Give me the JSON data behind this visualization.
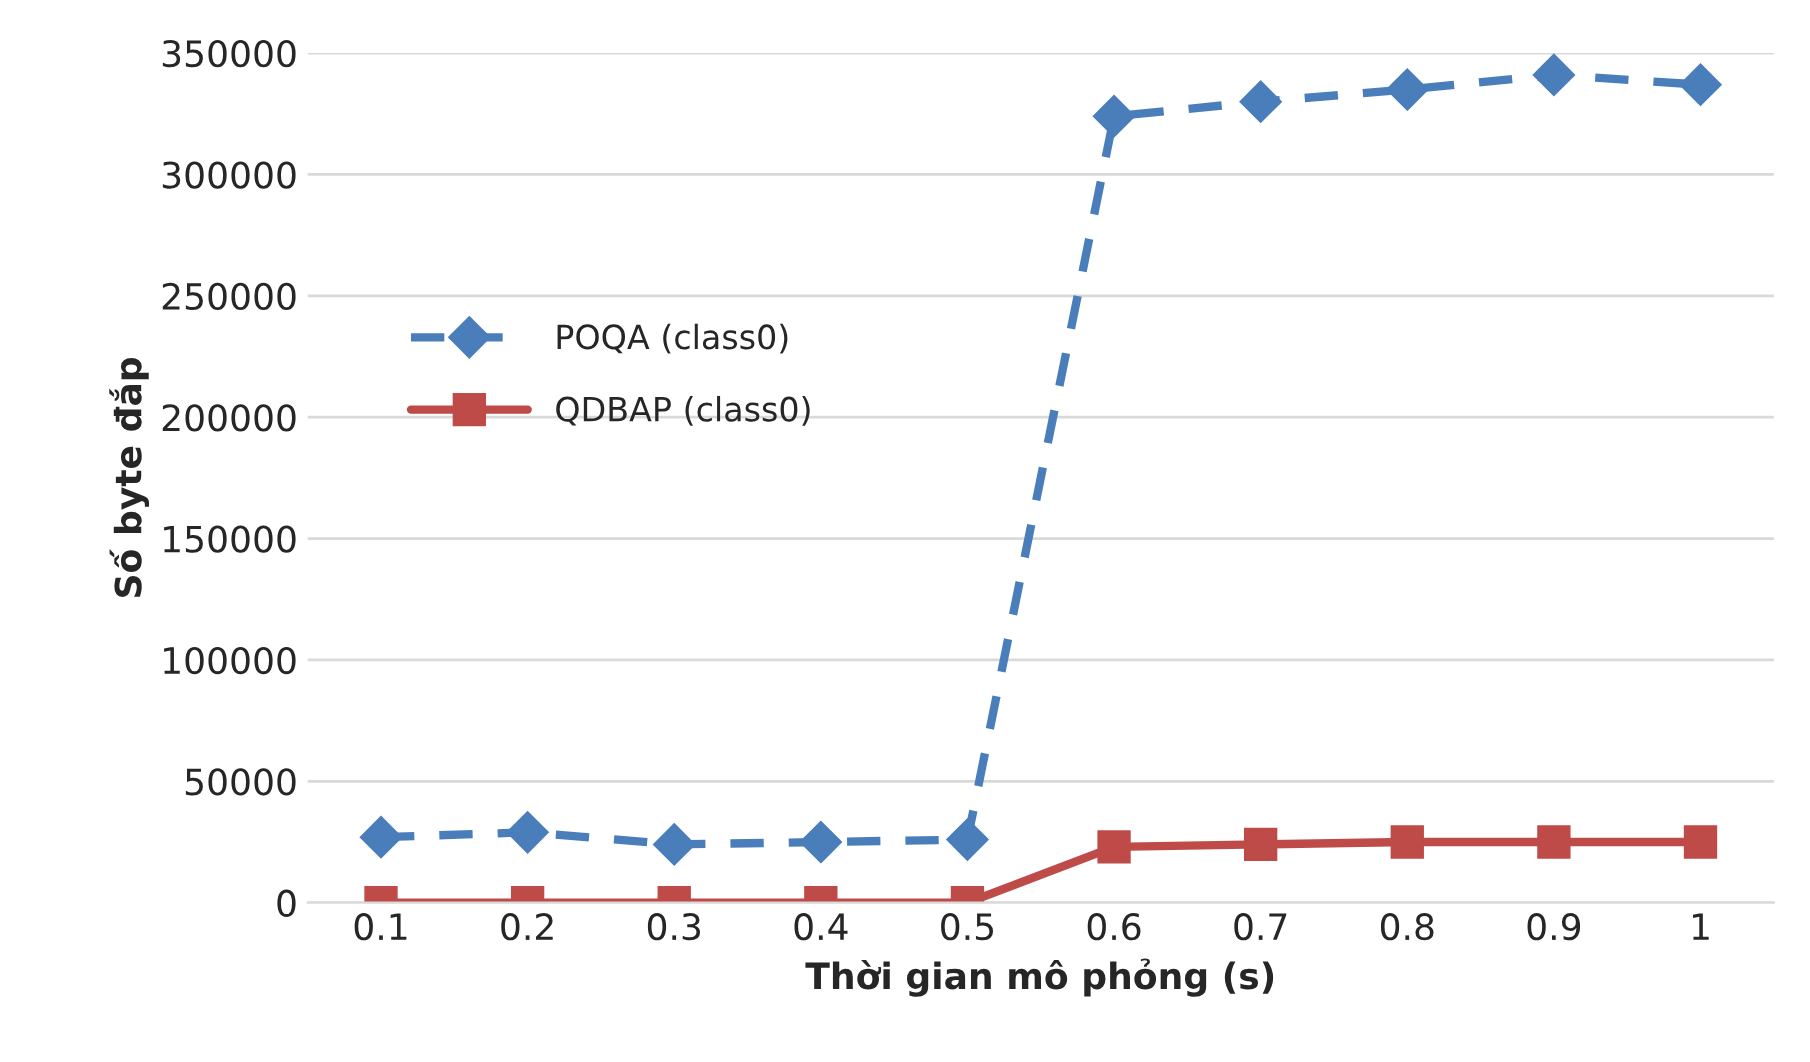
{
  "chart_data": {
    "type": "line",
    "xlabel": "Thời gian mô phỏng (s)",
    "ylabel": "Số byte đắp",
    "categories": [
      "0.1",
      "0.2",
      "0.3",
      "0.4",
      "0.5",
      "0.6",
      "0.7",
      "0.8",
      "0.9",
      "1"
    ],
    "series": [
      {
        "name": "POQA (class0)",
        "color": "#4a7ebb",
        "marker": "diamond",
        "line_style": "dashed",
        "values": [
          27000,
          29000,
          24000,
          25000,
          26000,
          324000,
          330000,
          335000,
          341000,
          337000
        ]
      },
      {
        "name": "QDBAP (class0)",
        "color": "#be4b48",
        "marker": "square",
        "line_style": "solid",
        "values": [
          0,
          0,
          0,
          0,
          0,
          23000,
          24000,
          25000,
          25000,
          25000
        ]
      }
    ],
    "ylim": [
      0,
      350000
    ],
    "yticks": [
      0,
      50000,
      100000,
      150000,
      200000,
      250000,
      300000,
      350000
    ],
    "grid": "y",
    "legend": "left"
  }
}
